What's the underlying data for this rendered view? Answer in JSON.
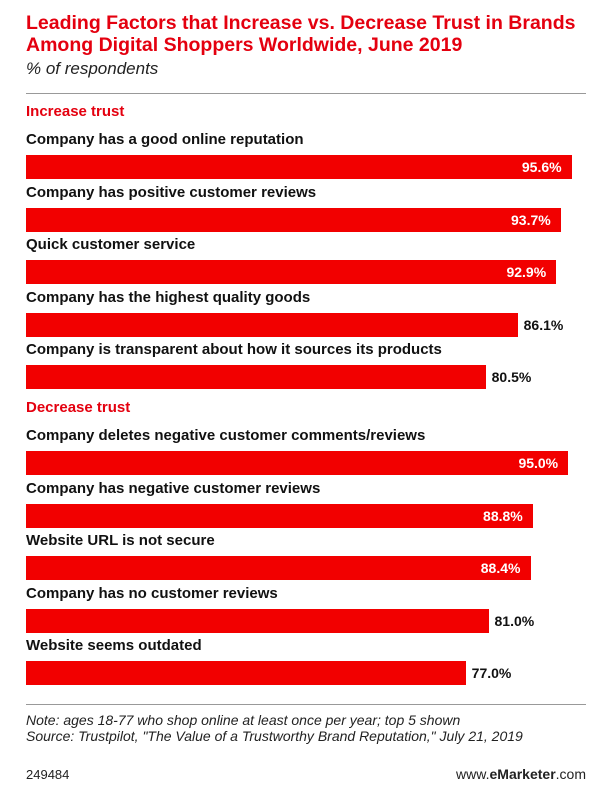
{
  "title": "Leading Factors that Increase vs. Decrease Trust in Brands Among Digital Shoppers Worldwide, June 2019",
  "subtitle": "% of respondents",
  "note": "Note: ages 18-77 who shop online at least once per year; top 5 shown",
  "source": "Source: Trustpilot, \"The Value of a Trustworthy Brand Reputation,\" July 21, 2019",
  "footer": {
    "id": "249484",
    "brand_prefix": "www.",
    "brand_bold": "eMarketer",
    "brand_suffix": ".com"
  },
  "colors": {
    "bar": "#f20000",
    "accent": "#e4000f"
  },
  "chart_data": {
    "type": "bar",
    "orientation": "horizontal",
    "unit": "%",
    "xlim": [
      0,
      100
    ],
    "groups": [
      {
        "name": "Increase trust",
        "categories": [
          "Company has a good online reputation",
          "Company has positive customer reviews",
          "Quick customer service",
          "Company has the highest quality goods",
          "Company is transparent about how it sources its products"
        ],
        "values": [
          95.6,
          93.7,
          92.9,
          86.1,
          80.5
        ],
        "labels": [
          "95.6%",
          "93.7%",
          "92.9%",
          "86.1%",
          "80.5%"
        ]
      },
      {
        "name": "Decrease trust",
        "categories": [
          "Company deletes negative customer comments/reviews",
          "Company has negative customer reviews",
          "Website URL is not secure",
          "Company has no customer reviews",
          "Website seems outdated"
        ],
        "values": [
          95.0,
          88.8,
          88.4,
          81.0,
          77.0
        ],
        "labels": [
          "95.0%",
          "88.8%",
          "88.4%",
          "81.0%",
          "77.0%"
        ]
      }
    ]
  }
}
